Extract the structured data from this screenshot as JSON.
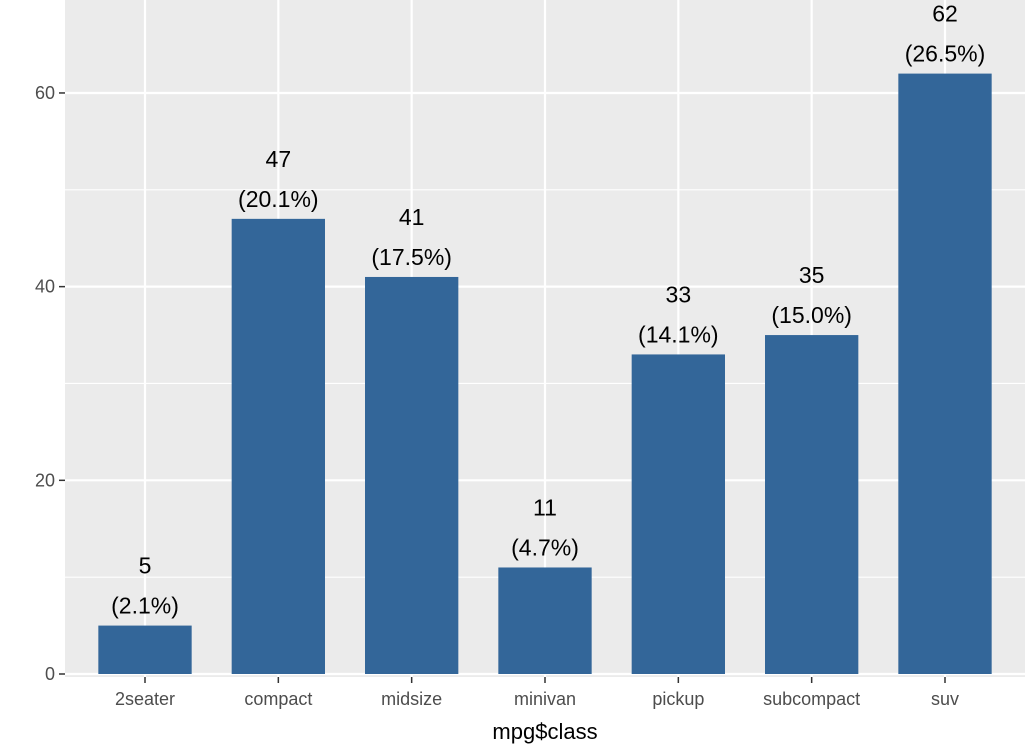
{
  "chart_data": {
    "type": "bar",
    "title": "",
    "xlabel": "mpg$class",
    "ylabel": "",
    "categories": [
      "2seater",
      "compact",
      "midsize",
      "minivan",
      "pickup",
      "subcompact",
      "suv"
    ],
    "values": [
      5,
      47,
      41,
      11,
      33,
      35,
      62
    ],
    "value_labels": [
      "5",
      "47",
      "41",
      "11",
      "33",
      "35",
      "62"
    ],
    "percent_labels": [
      "(2.1%)",
      "(20.1%)",
      "(17.5%)",
      "(4.7%)",
      "(14.1%)",
      "(15.0%)",
      "(26.5%)"
    ],
    "yticks": [
      0,
      20,
      40,
      60
    ],
    "ytick_labels": [
      "0",
      "20",
      "40",
      "60"
    ],
    "ylim": [
      0,
      69.6
    ],
    "grid": true,
    "legend": "none",
    "bar_color": "#336699",
    "panel_color": "#ebebeb",
    "grid_color": "#ffffff"
  }
}
